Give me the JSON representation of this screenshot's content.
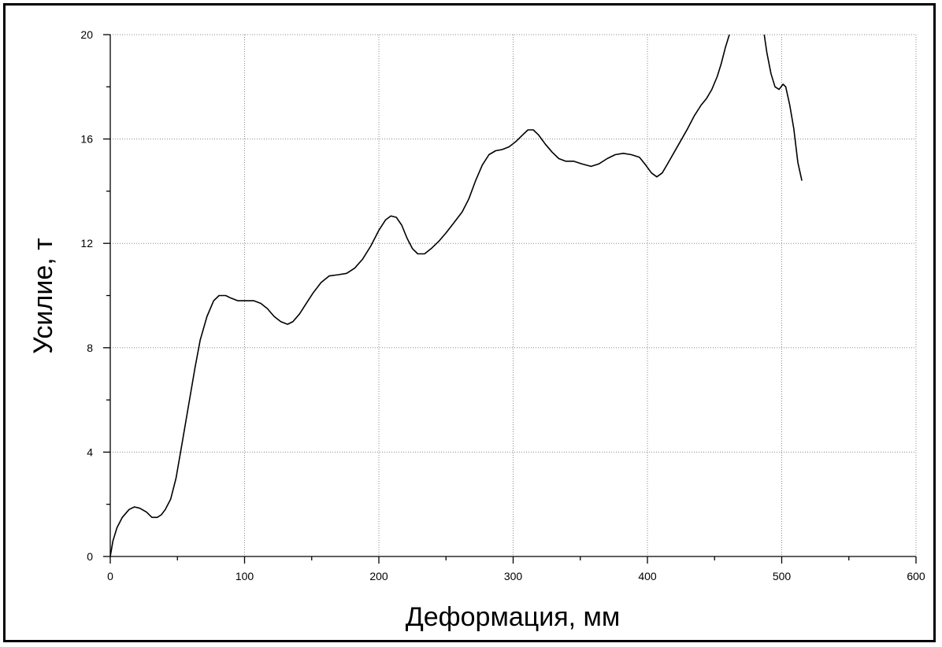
{
  "chart_data": {
    "type": "line",
    "title": "",
    "xlabel": "Деформация, мм",
    "ylabel": "Усилие, т",
    "xlim": [
      0,
      600
    ],
    "ylim": [
      0,
      20
    ],
    "x_ticks": [
      0,
      100,
      200,
      300,
      400,
      500,
      600
    ],
    "y_ticks": [
      0,
      4,
      8,
      12,
      16,
      20
    ],
    "x_minor_step": 50,
    "y_minor_step": 2,
    "grid": true,
    "grid_style": "dotted",
    "legend": "none",
    "series": [
      {
        "segments": [
          [
            [
              0,
              0
            ],
            [
              2,
              0.6
            ],
            [
              5,
              1.1
            ],
            [
              9,
              1.5
            ],
            [
              14,
              1.8
            ],
            [
              18,
              1.9
            ],
            [
              22,
              1.85
            ],
            [
              27,
              1.7
            ],
            [
              31,
              1.5
            ],
            [
              35,
              1.5
            ],
            [
              38,
              1.6
            ],
            [
              41,
              1.8
            ],
            [
              45,
              2.2
            ],
            [
              49,
              3.0
            ],
            [
              53,
              4.2
            ],
            [
              58,
              5.7
            ],
            [
              63,
              7.2
            ],
            [
              67,
              8.3
            ],
            [
              72,
              9.2
            ],
            [
              77,
              9.8
            ],
            [
              81,
              10.0
            ],
            [
              86,
              10.0
            ],
            [
              90,
              9.9
            ],
            [
              95,
              9.8
            ],
            [
              100,
              9.8
            ],
            [
              107,
              9.8
            ],
            [
              112,
              9.7
            ],
            [
              117,
              9.5
            ],
            [
              122,
              9.2
            ],
            [
              127,
              9.0
            ],
            [
              132,
              8.9
            ],
            [
              136,
              9.0
            ],
            [
              141,
              9.3
            ],
            [
              146,
              9.7
            ],
            [
              151,
              10.1
            ],
            [
              157,
              10.5
            ],
            [
              163,
              10.75
            ],
            [
              170,
              10.8
            ],
            [
              176,
              10.85
            ],
            [
              182,
              11.05
            ],
            [
              188,
              11.4
            ],
            [
              194,
              11.9
            ],
            [
              200,
              12.5
            ],
            [
              205,
              12.9
            ],
            [
              209,
              13.05
            ],
            [
              213,
              13.0
            ],
            [
              217,
              12.7
            ],
            [
              221,
              12.2
            ],
            [
              225,
              11.8
            ],
            [
              229,
              11.6
            ],
            [
              234,
              11.6
            ],
            [
              239,
              11.8
            ],
            [
              245,
              12.1
            ],
            [
              250,
              12.4
            ],
            [
              256,
              12.8
            ],
            [
              262,
              13.2
            ],
            [
              267,
              13.7
            ],
            [
              272,
              14.4
            ],
            [
              277,
              15.0
            ],
            [
              282,
              15.4
            ],
            [
              287,
              15.55
            ],
            [
              292,
              15.6
            ],
            [
              297,
              15.7
            ],
            [
              302,
              15.9
            ],
            [
              307,
              16.15
            ],
            [
              311,
              16.35
            ],
            [
              315,
              16.35
            ],
            [
              319,
              16.15
            ],
            [
              324,
              15.8
            ],
            [
              329,
              15.5
            ],
            [
              334,
              15.25
            ],
            [
              339,
              15.15
            ],
            [
              345,
              15.15
            ],
            [
              351,
              15.05
            ],
            [
              358,
              14.95
            ],
            [
              364,
              15.05
            ],
            [
              370,
              15.25
            ],
            [
              376,
              15.4
            ],
            [
              382,
              15.45
            ],
            [
              388,
              15.4
            ],
            [
              394,
              15.3
            ],
            [
              398,
              15.05
            ],
            [
              403,
              14.7
            ],
            [
              407,
              14.55
            ],
            [
              411,
              14.7
            ],
            [
              415,
              15.05
            ],
            [
              420,
              15.5
            ],
            [
              425,
              15.95
            ],
            [
              430,
              16.4
            ],
            [
              435,
              16.9
            ],
            [
              440,
              17.3
            ],
            [
              444,
              17.55
            ],
            [
              448,
              17.9
            ],
            [
              452,
              18.4
            ],
            [
              455,
              18.9
            ],
            [
              458,
              19.5
            ],
            [
              461,
              20.0
            ]
          ],
          [
            [
              487,
              20.0
            ],
            [
              489,
              19.3
            ],
            [
              492,
              18.5
            ],
            [
              495,
              18.0
            ],
            [
              498,
              17.9
            ],
            [
              501,
              18.1
            ],
            [
              503,
              18.0
            ],
            [
              506,
              17.3
            ],
            [
              509,
              16.4
            ],
            [
              512,
              15.1
            ],
            [
              515,
              14.4
            ]
          ]
        ]
      }
    ]
  }
}
